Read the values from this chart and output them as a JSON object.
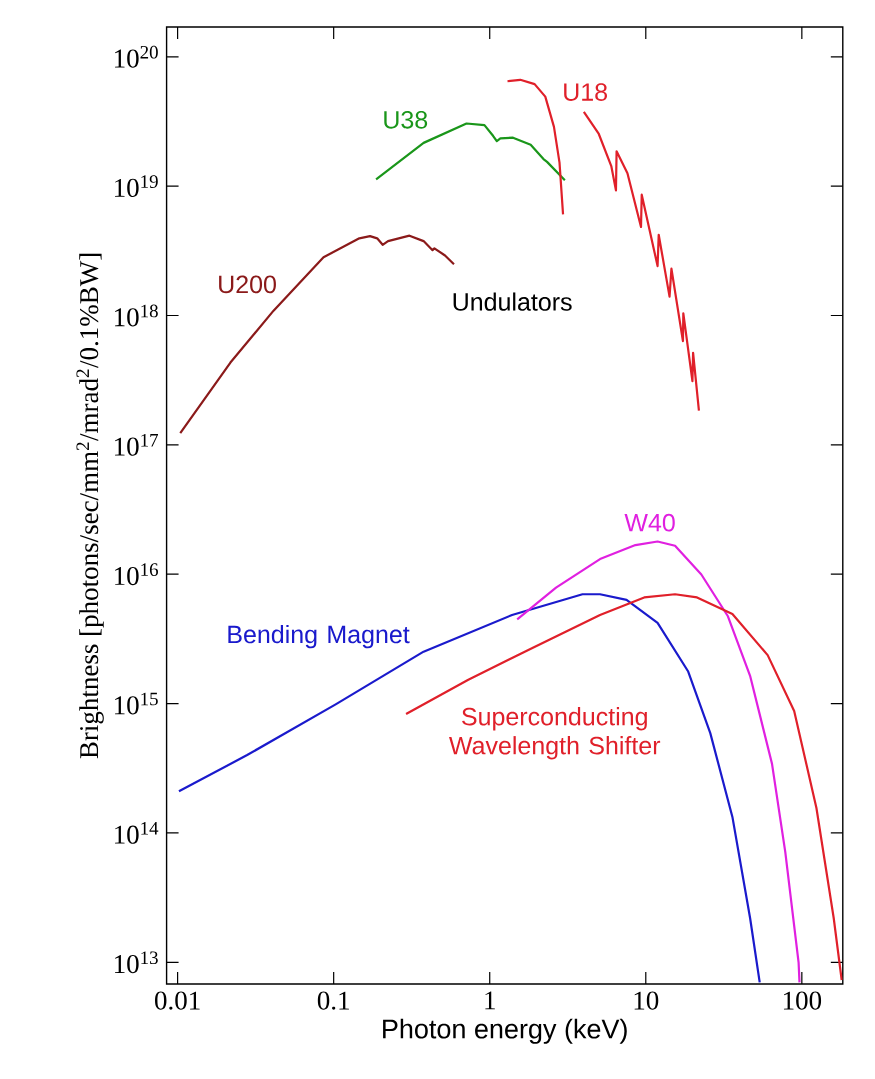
{
  "chart_data": {
    "type": "line",
    "xlabel": "Photon energy (keV)",
    "ylabel": "Brightness [photons/sec/mm$^{2}$/mrad$^{2}$/0.1%BW]",
    "annotations": [
      "Undulators"
    ],
    "log": "xy",
    "xlim": [
      0.0085,
      183
    ],
    "ylim": [
      6800000000000.0,
      1.7e+20
    ],
    "xticks": [
      0.01,
      0.1,
      1,
      10,
      100
    ],
    "yticks": [
      {
        "value": 10000000000000.0,
        "label": "10$^{13}$"
      },
      {
        "value": 100000000000000.0,
        "label": "10$^{14}$"
      },
      {
        "value": 1000000000000000.0,
        "label": "10$^{15}$"
      },
      {
        "value": 1e+16,
        "label": "10$^{16}$"
      },
      {
        "value": 1e+17,
        "label": "10$^{17}$"
      },
      {
        "value": 1e+18,
        "label": "10$^{18}$"
      },
      {
        "value": 1e+19,
        "label": "10$^{19}$"
      },
      {
        "value": 1e+20,
        "label": "10$^{20}$"
      }
    ],
    "series": [
      {
        "name": "U200",
        "color": "#8b1a1a",
        "x": [
          0.0104,
          0.0218,
          0.0412,
          0.0861,
          0.146,
          0.171,
          0.19,
          0.206,
          0.223,
          0.306,
          0.377,
          0.43,
          0.442,
          0.517,
          0.59
        ],
        "values": [
          1.23e+17,
          4.33e+17,
          1.09e+18,
          2.82e+18,
          3.95e+18,
          4.11e+18,
          3.95e+18,
          3.52e+18,
          3.76e+18,
          4.14e+18,
          3.76e+18,
          3.2e+18,
          3.3e+18,
          2.91e+18,
          2.49e+18
        ]
      },
      {
        "name": "U38",
        "color": "#1a961a",
        "x": [
          0.187,
          0.377,
          0.71,
          0.925,
          1.05,
          1.11,
          1.17,
          1.41,
          1.83,
          2.21,
          2.33,
          3.03
        ],
        "values": [
          1.13e+19,
          2.16e+19,
          3.05e+19,
          2.96e+19,
          2.45e+19,
          2.23e+19,
          2.34e+19,
          2.37e+19,
          2.09e+19,
          1.62e+19,
          1.54e+19,
          1.11e+19
        ]
      },
      {
        "name": "U18",
        "color": "#e0202a",
        "x": [
          1.3,
          1.57,
          1.94,
          2.27,
          2.58,
          2.8,
          2.95,
          null,
          4.01,
          5.0,
          6.01,
          6.44,
          6.5,
          7.63,
          9.32,
          9.42,
          11.9,
          12.1,
          14.2,
          14.6,
          17.3,
          17.4,
          19.9,
          20.1,
          21.9
        ],
        "values": [
          6.47e+19,
          6.64e+19,
          6.15e+19,
          4.92e+19,
          2.87e+19,
          1.52e+19,
          6.05e+18,
          null,
          3.75e+19,
          2.53e+19,
          1.43e+19,
          9.27e+18,
          1.86e+19,
          1.26e+19,
          4.84e+18,
          8.59e+18,
          2.41e+18,
          4.21e+18,
          1.4e+18,
          2.3e+18,
          6.34e+17,
          1.04e+18,
          3.11e+17,
          5.14e+17,
          1.84e+17
        ]
      },
      {
        "name": "Bending Magnet",
        "color": "#1a1acc",
        "x": [
          0.0102,
          0.0279,
          0.103,
          0.377,
          1.39,
          3.93,
          5.09,
          7.53,
          11.9,
          18.7,
          25.9,
          35.9,
          46.6,
          53.7
        ],
        "values": [
          210000000000000.0,
          400000000000000.0,
          986000000000000.0,
          2520000000000000.0,
          4840000000000000.0,
          7000000000000000.0,
          7000000000000000.0,
          6330000000000000.0,
          4210000000000000.0,
          1770000000000000.0,
          591000000000000.0,
          133000000000000.0,
          22000000000000.0,
          7000000000000.0
        ]
      },
      {
        "name": "W40",
        "color": "#e020e0",
        "x": [
          1.5,
          2.66,
          5.09,
          8.58,
          11.9,
          15.4,
          22.7,
          33.6,
          46.6,
          64.4,
          78.3,
          95.3,
          96.6
        ],
        "values": [
          4480000000000000.0,
          7870000000000000.0,
          1.31e+16,
          1.68e+16,
          1.79e+16,
          1.66e+16,
          9950000000000000.0,
          4730000000000000.0,
          1640000000000000.0,
          342000000000000.0,
          71300000000000.0,
          10000000000000.0,
          7000000000000.0
        ]
      },
      {
        "name": "Superconducting Wavelength Shifter",
        "color": "#e0202a",
        "x": [
          0.291,
          0.724,
          1.92,
          5.09,
          9.77,
          15.4,
          21.3,
          35.9,
          60.4,
          89.3,
          124,
          160,
          180
        ],
        "values": [
          830000000000000.0,
          1520000000000000.0,
          2730000000000000.0,
          4840000000000000.0,
          6620000000000000.0,
          7000000000000000.0,
          6620000000000000.0,
          4920000000000000.0,
          2370000000000000.0,
          877000000000000.0,
          156000000000000.0,
          22000000000000.0,
          7300000000000.0
        ]
      }
    ]
  }
}
